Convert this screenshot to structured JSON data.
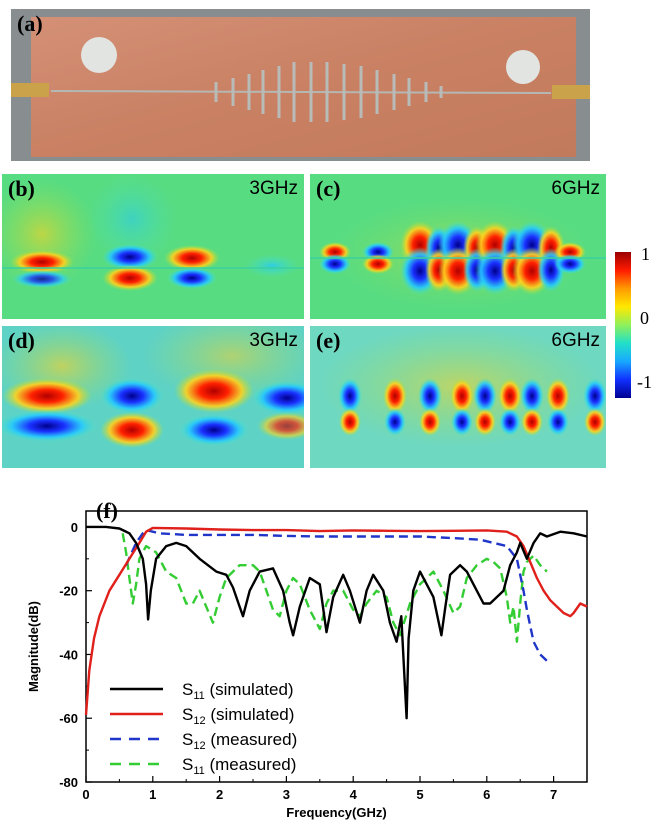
{
  "panel_a": {
    "label": "(a)"
  },
  "panel_b": {
    "label": "(b)",
    "freq": "3GHz"
  },
  "panel_c": {
    "label": "(c)",
    "freq": "6GHz"
  },
  "panel_d": {
    "label": "(d)",
    "freq": "3GHz"
  },
  "panel_e": {
    "label": "(e)",
    "freq": "6GHz"
  },
  "colorbar": {
    "max": "1",
    "mid": "0",
    "min": "-1"
  },
  "chart_data": {
    "type": "line",
    "panel_label": "(f)",
    "xlabel": "Frequency(GHz)",
    "ylabel": "Magnitude(dB)",
    "xlim": [
      0,
      7.5
    ],
    "ylim": [
      -80,
      5
    ],
    "xticks": [
      "0",
      "1",
      "2",
      "3",
      "4",
      "5",
      "6",
      "7"
    ],
    "yticks": [
      "0",
      "-20",
      "-40",
      "-60",
      "-80"
    ],
    "legend_position": "bottom-left",
    "series": [
      {
        "name": "S11 (simulated)",
        "label_main": "S",
        "label_sub": "11",
        "label_rest": " (simulated)",
        "color": "#000000",
        "dash": "solid",
        "x": [
          0,
          0.3,
          0.5,
          0.65,
          0.75,
          0.85,
          0.9,
          0.93,
          0.97,
          1.05,
          1.2,
          1.35,
          1.5,
          1.7,
          1.95,
          2.1,
          2.2,
          2.3,
          2.35,
          2.45,
          2.6,
          2.8,
          2.95,
          3.05,
          3.1,
          3.2,
          3.35,
          3.5,
          3.6,
          3.7,
          3.85,
          3.95,
          4.1,
          4.2,
          4.3,
          4.45,
          4.55,
          4.65,
          4.72,
          4.77,
          4.8,
          4.83,
          4.9,
          5.0,
          5.2,
          5.32,
          5.38,
          5.45,
          5.6,
          5.7,
          5.85,
          5.95,
          6.05,
          6.15,
          6.25,
          6.35,
          6.45,
          6.5,
          6.6,
          6.7,
          6.8,
          6.9,
          7.1,
          7.3,
          7.5
        ],
        "y": [
          0,
          0,
          -0.5,
          -2,
          -5,
          -10,
          -18,
          -29,
          -20,
          -10,
          -6,
          -5,
          -6,
          -10,
          -14,
          -15,
          -19,
          -25,
          -28,
          -20,
          -14,
          -13,
          -20,
          -30,
          -34,
          -25,
          -16,
          -18,
          -33,
          -22,
          -15,
          -20,
          -30,
          -20,
          -15,
          -20,
          -30,
          -36,
          -28,
          -48,
          -60,
          -35,
          -20,
          -14,
          -22,
          -34,
          -25,
          -15,
          -12,
          -14,
          -20,
          -24,
          -24,
          -22,
          -20,
          -12,
          -8,
          -5,
          -10,
          -5,
          -2,
          -3,
          -1.5,
          -2,
          -3
        ]
      },
      {
        "name": "S12 (simulated)",
        "label_main": "S",
        "label_sub": "12",
        "label_rest": " (simulated)",
        "color": "#e0201b",
        "dash": "solid",
        "x": [
          0,
          0.05,
          0.12,
          0.2,
          0.35,
          0.5,
          0.65,
          0.8,
          0.9,
          1.0,
          1.5,
          2.0,
          2.5,
          3.0,
          3.5,
          4.0,
          4.5,
          5.0,
          5.5,
          6.0,
          6.3,
          6.45,
          6.55,
          6.65,
          6.75,
          6.85,
          6.95,
          7.05,
          7.15,
          7.25,
          7.3,
          7.4,
          7.5
        ],
        "y": [
          -59,
          -45,
          -35,
          -28,
          -20,
          -15,
          -10,
          -5,
          -1.5,
          -0.3,
          -0.5,
          -0.8,
          -1,
          -1,
          -1.3,
          -1.1,
          -1.2,
          -1.3,
          -1.2,
          -1.1,
          -1.5,
          -3,
          -6,
          -11,
          -16,
          -20,
          -23,
          -25,
          -27,
          -28,
          -27,
          -24,
          -25
        ]
      },
      {
        "name": "S12 (measured)",
        "label_main": "S",
        "label_sub": "12",
        "label_rest": " (measured)",
        "color": "#1f36c8",
        "dash": "dashed",
        "x": [
          0.6,
          0.75,
          0.85,
          0.9,
          1.0,
          1.1,
          1.5,
          2.0,
          2.5,
          3.0,
          3.5,
          4.0,
          4.5,
          5.0,
          5.5,
          5.9,
          6.1,
          6.3,
          6.45,
          6.55,
          6.6,
          6.65,
          6.7,
          6.8,
          6.9
        ],
        "y": [
          -12,
          -5,
          -2,
          -1,
          -1.5,
          -2,
          -2.5,
          -2.5,
          -2.5,
          -2.8,
          -3,
          -3,
          -3,
          -3,
          -3.5,
          -4,
          -5,
          -6,
          -10,
          -20,
          -26,
          -31,
          -36,
          -40,
          -42
        ]
      },
      {
        "name": "S11 (measured)",
        "label_main": "S",
        "label_sub": "11",
        "label_rest": " (measured)",
        "color": "#33cc33",
        "dash": "dashed",
        "x": [
          0.55,
          0.6,
          0.65,
          0.7,
          0.75,
          0.8,
          0.9,
          1.05,
          1.2,
          1.35,
          1.5,
          1.6,
          1.7,
          1.8,
          1.9,
          2.0,
          2.1,
          2.3,
          2.5,
          2.6,
          2.7,
          2.8,
          2.9,
          3.0,
          3.1,
          3.2,
          3.35,
          3.5,
          3.6,
          3.7,
          3.85,
          4.0,
          4.1,
          4.2,
          4.35,
          4.5,
          4.6,
          4.7,
          4.85,
          5.0,
          5.1,
          5.2,
          5.35,
          5.5,
          5.6,
          5.7,
          5.85,
          6.0,
          6.1,
          6.2,
          6.3,
          6.35,
          6.4,
          6.45,
          6.5,
          6.55,
          6.6,
          6.7,
          6.8,
          6.9
        ],
        "y": [
          -2,
          -8,
          -16,
          -24,
          -18,
          -10,
          -6,
          -8,
          -14,
          -16,
          -24,
          -24,
          -20,
          -25,
          -30,
          -22,
          -16,
          -12,
          -12,
          -14,
          -20,
          -26,
          -28,
          -20,
          -16,
          -18,
          -26,
          -32,
          -24,
          -20,
          -20,
          -26,
          -28,
          -24,
          -20,
          -22,
          -30,
          -34,
          -24,
          -18,
          -16,
          -14,
          -20,
          -27,
          -25,
          -16,
          -12,
          -10,
          -11,
          -13,
          -22,
          -30,
          -25,
          -36,
          -24,
          -14,
          -11,
          -9,
          -12,
          -14
        ]
      }
    ]
  }
}
